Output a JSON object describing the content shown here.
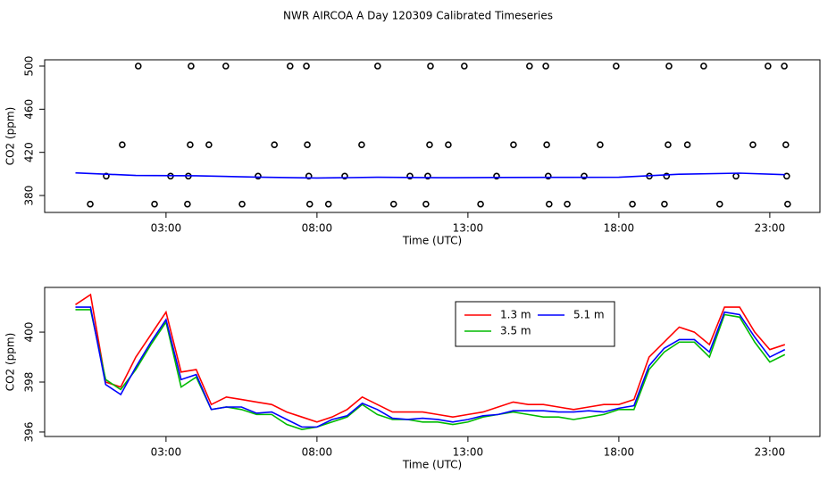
{
  "chart_data": [
    {
      "type": "scatter",
      "title": "NWR AIRCOA A  Day 120309  Calibrated Timeseries",
      "x_label": "Time (UTC)",
      "y_label": "CO2 (ppm)",
      "xlim": [
        -1.02,
        24.66
      ],
      "ylim": [
        364.3,
        505.8
      ],
      "xticks": [
        {
          "value": 3,
          "label": "03:00"
        },
        {
          "value": 8,
          "label": "08:00"
        },
        {
          "value": 13,
          "label": "13:00"
        },
        {
          "value": 18,
          "label": "18:00"
        },
        {
          "value": 23,
          "label": "23:00"
        }
      ],
      "yticks": [
        380,
        420,
        460,
        500
      ],
      "series": [
        {
          "type": "scatter",
          "color": "#000000",
          "x": [
            2.08,
            3.83,
            4.98,
            7.11,
            7.65,
            10.01,
            11.76,
            12.88,
            15.04,
            15.58,
            17.91,
            19.66,
            20.81,
            22.94,
            23.48,
            1.55,
            3.8,
            4.42,
            6.59,
            7.68,
            9.48,
            11.73,
            12.35,
            14.51,
            15.61,
            17.38,
            19.63,
            20.27,
            22.44,
            23.53,
            1.02,
            3.15,
            3.74,
            6.05,
            7.73,
            8.92,
            11.08,
            11.67,
            13.95,
            15.66,
            16.85,
            19.01,
            19.58,
            21.88,
            23.56,
            0.49,
            2.62,
            3.71,
            5.52,
            7.76,
            8.38,
            10.54,
            11.61,
            13.42,
            15.69,
            16.29,
            18.45,
            19.51,
            21.34,
            23.59
          ],
          "values": [
            500,
            500,
            500,
            500,
            500,
            500,
            500,
            500,
            500,
            500,
            500,
            500,
            500,
            500,
            500,
            427,
            427,
            427,
            427,
            427,
            427,
            427,
            427,
            427,
            427,
            427,
            427,
            427,
            427,
            427,
            398,
            398,
            398,
            398,
            398,
            398,
            398,
            398,
            398,
            398,
            398,
            398,
            398,
            398,
            398,
            372,
            372,
            372,
            372,
            372,
            372,
            372,
            372,
            372,
            372,
            372,
            372,
            372,
            372,
            372
          ]
        },
        {
          "type": "line",
          "color": "#0000ff",
          "x": [
            0,
            2,
            4,
            6,
            8,
            10,
            12,
            14,
            16,
            18,
            20,
            22,
            23.5
          ],
          "values": [
            401,
            398.6,
            398.3,
            397,
            396.2,
            396.9,
            396.5,
            396.7,
            396.8,
            396.95,
            399.7,
            400.7,
            399.3
          ]
        }
      ]
    },
    {
      "type": "line",
      "x_label": "Time (UTC)",
      "y_label": "CO2 (ppm)",
      "xlim": [
        -1.02,
        24.66
      ],
      "ylim": [
        395.82,
        401.79
      ],
      "xticks": [
        {
          "value": 3,
          "label": "03:00"
        },
        {
          "value": 8,
          "label": "08:00"
        },
        {
          "value": 13,
          "label": "13:00"
        },
        {
          "value": 18,
          "label": "18:00"
        },
        {
          "value": 23,
          "label": "23:00"
        }
      ],
      "yticks": [
        396,
        398,
        400
      ],
      "legend": "top",
      "legend_columns": 2,
      "x": [
        0,
        0.5,
        1,
        1.5,
        2,
        2.5,
        3,
        3.5,
        4,
        4.5,
        5,
        5.5,
        6,
        6.5,
        7,
        7.5,
        8,
        8.5,
        9,
        9.5,
        10,
        10.5,
        11,
        11.5,
        12,
        12.5,
        13,
        13.5,
        14,
        14.5,
        15,
        15.5,
        16,
        16.5,
        17,
        17.5,
        18,
        18.5,
        19,
        19.5,
        20,
        20.5,
        21,
        21.5,
        22,
        22.5,
        23,
        23.5
      ],
      "series": [
        {
          "name": "1.3 m",
          "color": "#ff0000",
          "values": [
            401.1,
            401.5,
            398.0,
            397.8,
            399.0,
            399.9,
            400.8,
            398.4,
            398.5,
            397.1,
            397.4,
            397.3,
            397.2,
            397.1,
            396.8,
            396.6,
            396.4,
            396.6,
            396.9,
            397.4,
            397.1,
            396.8,
            396.8,
            396.8,
            396.7,
            396.6,
            396.7,
            396.8,
            397.0,
            397.2,
            397.1,
            397.1,
            397.0,
            396.9,
            397.0,
            397.1,
            397.1,
            397.3,
            399.0,
            399.6,
            400.2,
            400.0,
            399.5,
            401.0,
            401.0,
            400.0,
            399.3,
            399.5
          ]
        },
        {
          "name": "3.5 m",
          "color": "#00bb00",
          "values": [
            400.9,
            400.9,
            398.1,
            397.7,
            398.5,
            399.5,
            400.4,
            397.8,
            398.2,
            396.9,
            397.0,
            396.9,
            396.7,
            396.7,
            396.3,
            396.1,
            396.2,
            396.4,
            396.6,
            397.1,
            396.7,
            396.5,
            396.5,
            396.4,
            396.4,
            396.3,
            396.4,
            396.6,
            396.7,
            396.8,
            396.7,
            396.6,
            396.6,
            396.5,
            396.6,
            396.7,
            396.9,
            396.9,
            398.5,
            399.2,
            399.6,
            399.6,
            399.0,
            400.7,
            400.6,
            399.6,
            398.8,
            399.1
          ]
        },
        {
          "name": "5.1 m",
          "color": "#0000ff",
          "values": [
            401.0,
            401.0,
            397.9,
            397.5,
            398.6,
            399.6,
            400.5,
            398.1,
            398.3,
            396.9,
            397.0,
            397.0,
            396.75,
            396.8,
            396.5,
            396.2,
            396.2,
            396.5,
            396.65,
            397.15,
            396.9,
            396.55,
            396.5,
            396.55,
            396.5,
            396.4,
            396.5,
            396.65,
            396.7,
            396.85,
            396.85,
            396.85,
            396.8,
            396.8,
            396.85,
            396.8,
            396.95,
            397.05,
            398.65,
            399.35,
            399.7,
            399.7,
            399.2,
            400.8,
            400.7,
            399.8,
            399.0,
            399.3
          ]
        }
      ]
    }
  ]
}
